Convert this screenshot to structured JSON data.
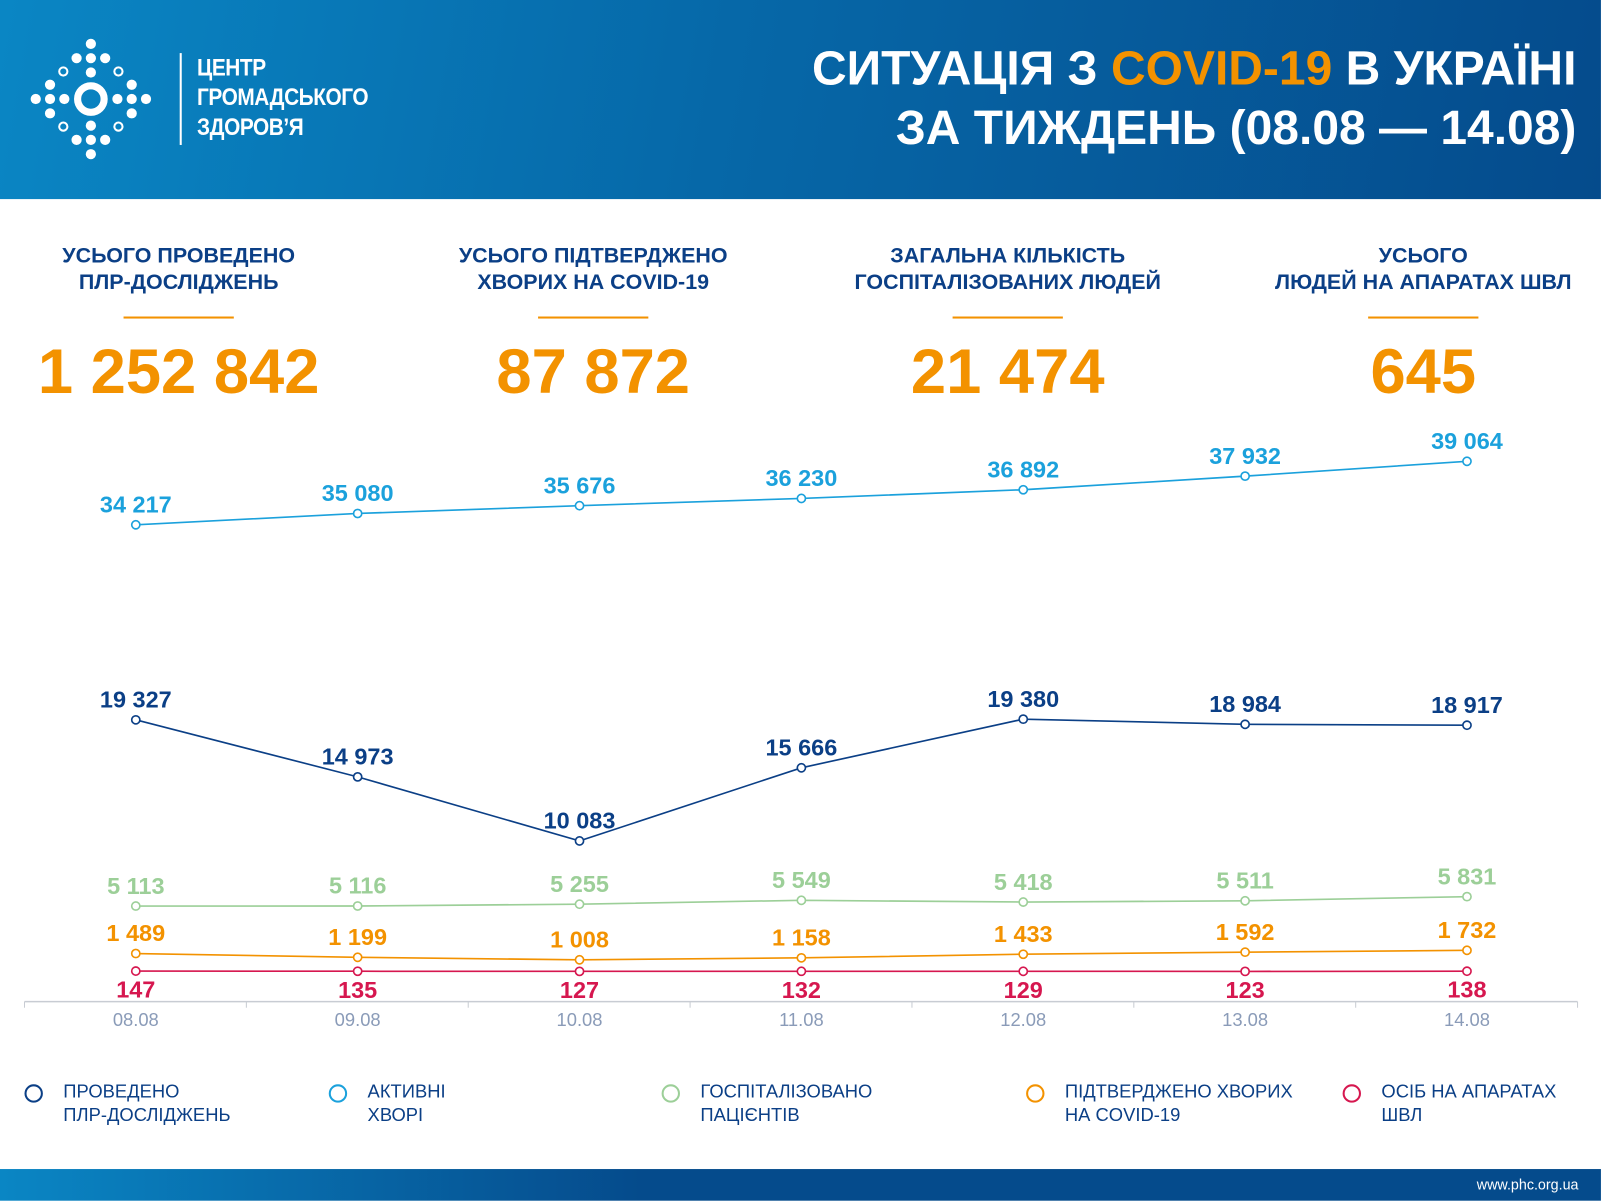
{
  "header": {
    "org_lines": [
      "ЦЕНТР",
      "ГРОМАДСЬКОГО",
      "ЗДОРОВ’Я"
    ],
    "title_part1": "СИТУАЦІЯ З ",
    "title_highlight": "COVID-19",
    "title_part2": " В УКРАЇНІ",
    "title_line2": "ЗА ТИЖДЕНЬ (08.08 — 14.08)"
  },
  "stats": [
    {
      "label1": "УСЬОГО ПРОВЕДЕНО",
      "label2": "ПЛР-ДОСЛІДЖЕНЬ",
      "value": "1 252 842"
    },
    {
      "label1": "УСЬОГО ПІДТВЕРДЖЕНО",
      "label2": "ХВОРИХ НА COVID-19",
      "value": "87 872"
    },
    {
      "label1": "ЗАГАЛЬНА КІЛЬКІСТЬ",
      "label2": "ГОСПІТАЛІЗОВАНИХ ЛЮДЕЙ",
      "value": "21 474"
    },
    {
      "label1": "УСЬОГО",
      "label2": "ЛЮДЕЙ НА АПАРАТАХ ШВЛ",
      "value": "645"
    }
  ],
  "colors": {
    "accent": "#f39200",
    "navy": "#0b3f86",
    "axis": "#c8ccd3",
    "tick": "#8a9bb8"
  },
  "chart_data": {
    "type": "line",
    "categories": [
      "08.08",
      "09.08",
      "10.08",
      "11.08",
      "12.08",
      "13.08",
      "14.08"
    ],
    "grid": false,
    "legend_position": "bottom",
    "series": [
      {
        "name": "ПРОВЕДЕНО ПЛР-ДОСЛІДЖЕНЬ",
        "legend1": "ПРОВЕДЕНО",
        "legend2": "ПЛР-ДОСЛІДЖЕНЬ",
        "color": "#0b3f86",
        "values": [
          19327,
          14973,
          10083,
          15666,
          19380,
          18984,
          18917
        ],
        "labels": [
          "19 327",
          "14 973",
          "10 083",
          "15 666",
          "19 380",
          "18 984",
          "18 917"
        ],
        "label_pos": "above"
      },
      {
        "name": "АКТИВНІ ХВОРІ",
        "legend1": "АКТИВНІ",
        "legend2": "ХВОРІ",
        "color": "#1ba1dc",
        "values": [
          34217,
          35080,
          35676,
          36230,
          36892,
          37932,
          39064
        ],
        "labels": [
          "34 217",
          "35 080",
          "35 676",
          "36 230",
          "36 892",
          "37 932",
          "39 064"
        ],
        "label_pos": "above"
      },
      {
        "name": "ГОСПІТАЛІЗОВАНО ПАЦІЄНТІВ",
        "legend1": "ГОСПІТАЛІЗОВАНО",
        "legend2": "ПАЦІЄНТІВ",
        "color": "#9ccf98",
        "values": [
          5113,
          5116,
          5255,
          5549,
          5418,
          5511,
          5831
        ],
        "labels": [
          "5 113",
          "5 116",
          "5 255",
          "5 549",
          "5 418",
          "5 511",
          "5 831"
        ],
        "label_pos": "above"
      },
      {
        "name": "ПІДТВЕРДЖЕНО ХВОРИХ НА COVID-19",
        "legend1": "ПІДТВЕРДЖЕНО ХВОРИХ",
        "legend2": "НА COVID-19",
        "color": "#f39200",
        "values": [
          1489,
          1199,
          1008,
          1158,
          1433,
          1592,
          1732
        ],
        "labels": [
          "1 489",
          "1 199",
          "1 008",
          "1 158",
          "1 433",
          "1 592",
          "1 732"
        ],
        "label_pos": "above"
      },
      {
        "name": "ОСІБ НА АПАРАТАХ ШВЛ",
        "legend1": "ОСІБ НА АПАРАТАХ",
        "legend2": "ШВЛ",
        "color": "#d6174f",
        "values": [
          147,
          135,
          127,
          132,
          129,
          123,
          138
        ],
        "labels": [
          "147",
          "135",
          "127",
          "132",
          "129",
          "123",
          "138"
        ],
        "label_pos": "below"
      }
    ]
  },
  "footer": {
    "url": "www.phc.org.ua"
  }
}
